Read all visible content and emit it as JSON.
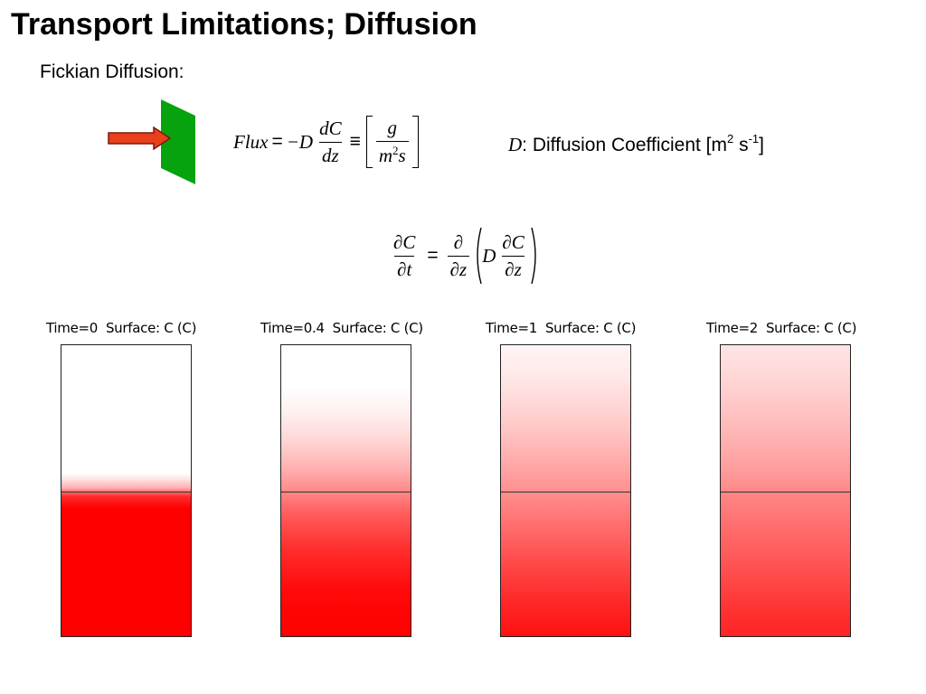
{
  "slide": {
    "title": "Transport Limitations; Diffusion",
    "subtitle": "Fickian Diffusion:"
  },
  "flux_equation": {
    "lhs": "Flux",
    "equals": "=",
    "minus_d": "−D",
    "dc": "dC",
    "dz": "dz",
    "equiv": "≡",
    "unit_num": "g",
    "unit_den_m": "m",
    "unit_den_exp": "2",
    "unit_den_s": "s"
  },
  "coefficient": {
    "symbol": "D",
    "text": ": Diffusion Coefficient [m",
    "exp1": "2",
    "mid": " s",
    "exp2": "-1",
    "end": "]"
  },
  "pde": {
    "lhs_num": "∂C",
    "lhs_den": "∂t",
    "equals": "=",
    "op_num": "∂",
    "op_den": "∂z",
    "d": "D",
    "in_num": "∂C",
    "in_den": "∂z"
  },
  "colors": {
    "arrow_fill": "#e8401c",
    "arrow_outline": "#7a1a0a",
    "membrane": "#06a30f",
    "concentration": "#ff0000"
  },
  "panels": [
    {
      "label": "Time=0  Surface: C (C)",
      "time": 0
    },
    {
      "label": "Time=0.4  Surface: C (C)",
      "time": 0.4
    },
    {
      "label": "Time=1  Surface: C (C)",
      "time": 1
    },
    {
      "label": "Time=2  Surface: C (C)",
      "time": 2
    }
  ]
}
